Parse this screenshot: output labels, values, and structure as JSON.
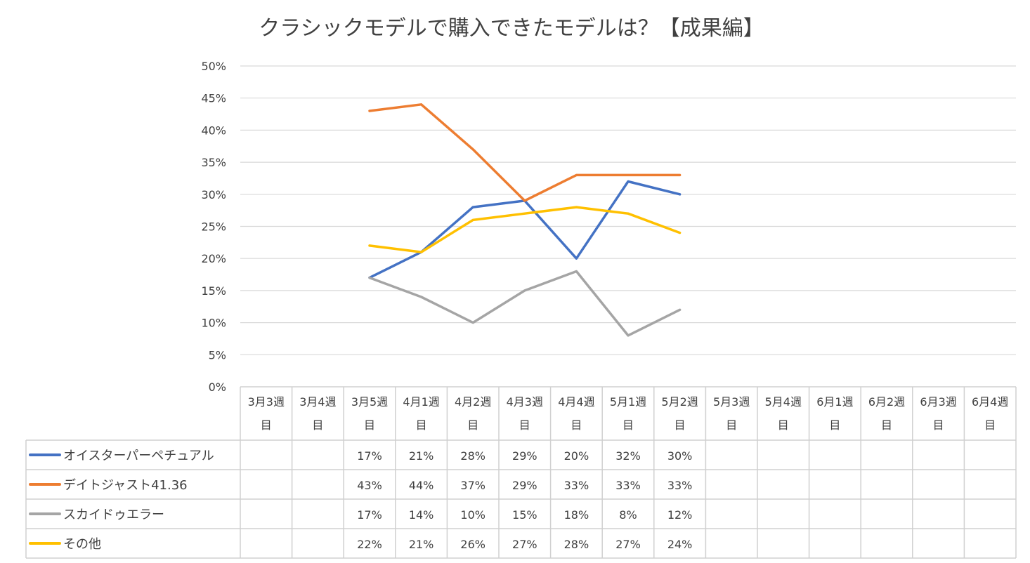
{
  "chart_data": {
    "type": "line",
    "title": "クラシックモデルで購入できたモデルは？【成果編】",
    "categories": [
      [
        "3月3週",
        "目"
      ],
      [
        "3月4週",
        "目"
      ],
      [
        "3月5週",
        "目"
      ],
      [
        "4月1週",
        "目"
      ],
      [
        "4月2週",
        "目"
      ],
      [
        "4月3週",
        "目"
      ],
      [
        "4月4週",
        "目"
      ],
      [
        "5月1週",
        "目"
      ],
      [
        "5月2週",
        "目"
      ],
      [
        "5月3週",
        "目"
      ],
      [
        "5月4週",
        "目"
      ],
      [
        "6月1週",
        "目"
      ],
      [
        "6月2週",
        "目"
      ],
      [
        "6月3週",
        "目"
      ],
      [
        "6月4週",
        "目"
      ]
    ],
    "y_ticks": [
      "0%",
      "5%",
      "10%",
      "15%",
      "20%",
      "25%",
      "30%",
      "35%",
      "40%",
      "45%",
      "50%"
    ],
    "ylim": [
      0,
      50
    ],
    "grid": true,
    "legend": "data-table",
    "series": [
      {
        "name": "オイスターパーペチュアル",
        "color": "#4472C4",
        "values": [
          null,
          null,
          17,
          21,
          28,
          29,
          20,
          32,
          30,
          null,
          null,
          null,
          null,
          null,
          null
        ],
        "labels": [
          "",
          "",
          "17%",
          "21%",
          "28%",
          "29%",
          "20%",
          "32%",
          "30%",
          "",
          "",
          "",
          "",
          "",
          ""
        ]
      },
      {
        "name": "デイトジャスト41.36",
        "color": "#ED7D31",
        "values": [
          null,
          null,
          43,
          44,
          37,
          29,
          33,
          33,
          33,
          null,
          null,
          null,
          null,
          null,
          null
        ],
        "labels": [
          "",
          "",
          "43%",
          "44%",
          "37%",
          "29%",
          "33%",
          "33%",
          "33%",
          "",
          "",
          "",
          "",
          "",
          ""
        ]
      },
      {
        "name": "スカイドゥエラー",
        "color": "#A5A5A5",
        "values": [
          null,
          null,
          17,
          14,
          10,
          15,
          18,
          8,
          12,
          null,
          null,
          null,
          null,
          null,
          null
        ],
        "labels": [
          "",
          "",
          "17%",
          "14%",
          "10%",
          "15%",
          "18%",
          "8%",
          "12%",
          "",
          "",
          "",
          "",
          "",
          ""
        ]
      },
      {
        "name": "その他",
        "color": "#FFC000",
        "values": [
          null,
          null,
          22,
          21,
          26,
          27,
          28,
          27,
          24,
          null,
          null,
          null,
          null,
          null,
          null
        ],
        "labels": [
          "",
          "",
          "22%",
          "21%",
          "26%",
          "27%",
          "28%",
          "27%",
          "24%",
          "",
          "",
          "",
          "",
          "",
          ""
        ]
      }
    ]
  }
}
